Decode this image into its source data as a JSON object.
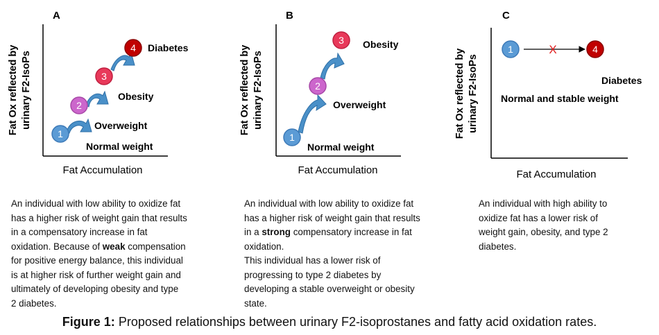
{
  "panels": [
    {
      "letter": "A",
      "y_axis_line1": "Fat Ox reflected by",
      "y_axis_line2": "urinary F2-IsoPs",
      "x_axis": "Fat Accumulation",
      "nodes": [
        {
          "num": "1",
          "label": "Normal weight",
          "color": "#5b9bd5"
        },
        {
          "num": "2",
          "label": "Overweight",
          "color": "#cc66cc"
        },
        {
          "num": "3",
          "label": "Obesity",
          "color": "#e8395a"
        },
        {
          "num": "4",
          "label": "Diabetes",
          "color": "#c00000"
        }
      ],
      "description": [
        {
          "text": "An individual with low ability to oxidize fat"
        },
        {
          "text": "has a higher risk of weight gain that results"
        },
        {
          "text": "in a compensatory increase in fat"
        },
        {
          "pre": "oxidation. Because of ",
          "bold": "weak",
          "post": " compensation"
        },
        {
          "text": "for positive energy balance, this individual"
        },
        {
          "text": "is at higher risk of further weight gain and"
        },
        {
          "text": "ultimately of developing obesity and type"
        },
        {
          "text": "2 diabetes."
        }
      ]
    },
    {
      "letter": "B",
      "y_axis_line1": "Fat Ox reflected by",
      "y_axis_line2": "urinary F2-IsoPs",
      "x_axis": "Fat Accumulation",
      "nodes": [
        {
          "num": "1",
          "label": "Normal weight",
          "color": "#5b9bd5"
        },
        {
          "num": "2",
          "label": "Overweight",
          "color": "#cc66cc"
        },
        {
          "num": "3",
          "label": "Obesity",
          "color": "#e8395a"
        }
      ],
      "description": [
        {
          "text": "An individual with low ability to oxidize fat"
        },
        {
          "text": "has a higher risk of weight gain that results"
        },
        {
          "pre": "in a ",
          "bold": "strong",
          "post": " compensatory increase in fat"
        },
        {
          "text": "oxidation."
        },
        {
          "text": "This individual has a lower risk of"
        },
        {
          "text": "progressing to type 2 diabetes by"
        },
        {
          "text": "developing a stable overweight or obesity"
        },
        {
          "text": "state."
        }
      ]
    },
    {
      "letter": "C",
      "y_axis_line1": "Fat Ox reflected by",
      "y_axis_line2": "urinary F2-IsoPs",
      "x_axis": "Fat Accumulation",
      "nodes": [
        {
          "num": "1",
          "label": "Normal and stable weight",
          "color": "#5b9bd5"
        },
        {
          "num": "4",
          "label": "Diabetes",
          "color": "#c00000"
        }
      ],
      "blocked_symbol": "X",
      "description": [
        {
          "text": "An individual with high ability to"
        },
        {
          "text": "oxidize fat has a lower risk of"
        },
        {
          "text": "weight gain, obesity, and type 2"
        },
        {
          "text": "diabetes."
        }
      ]
    }
  ],
  "caption": {
    "label": "Figure 1:",
    "text": " Proposed relationships between urinary F2-isoprostanes and fatty acid oxidation rates."
  },
  "colors": {
    "arrow_fill": "#4a90c8",
    "arrow_stroke": "#2e6fa7",
    "blocked_x": "#e02020",
    "axis": "#000000"
  }
}
